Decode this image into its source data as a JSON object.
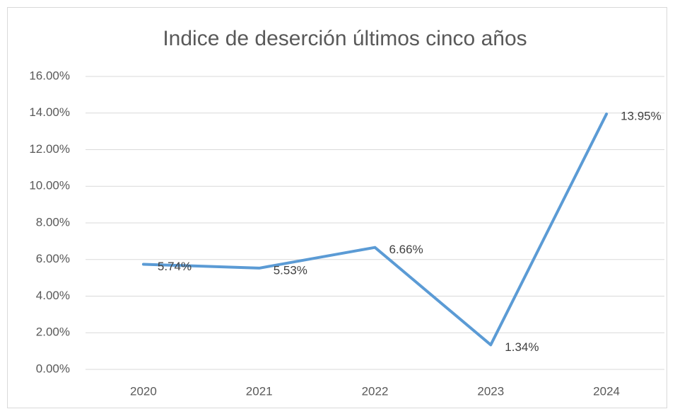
{
  "chart_data": {
    "type": "line",
    "title": "Indice de deserción últimos cinco años",
    "categories": [
      "2020",
      "2021",
      "2022",
      "2023",
      "2024"
    ],
    "series": [
      {
        "name": "Indice de deserción",
        "color": "#5b9bd5",
        "values": [
          5.74,
          5.53,
          6.66,
          1.34,
          13.95
        ],
        "value_labels": [
          "5.74%",
          "5.53%",
          "6.66%",
          "1.34%",
          "13.95%"
        ]
      }
    ],
    "ylim": [
      0,
      16
    ],
    "yticks": [
      {
        "value": 0,
        "label": "0.00%"
      },
      {
        "value": 2,
        "label": "2.00%"
      },
      {
        "value": 4,
        "label": "4.00%"
      },
      {
        "value": 6,
        "label": "6.00%"
      },
      {
        "value": 8,
        "label": "8.00%"
      },
      {
        "value": 10,
        "label": "10.00%"
      },
      {
        "value": 12,
        "label": "12.00%"
      },
      {
        "value": 14,
        "label": "14.00%"
      },
      {
        "value": 16,
        "label": "16.00%"
      }
    ],
    "grid": true
  }
}
